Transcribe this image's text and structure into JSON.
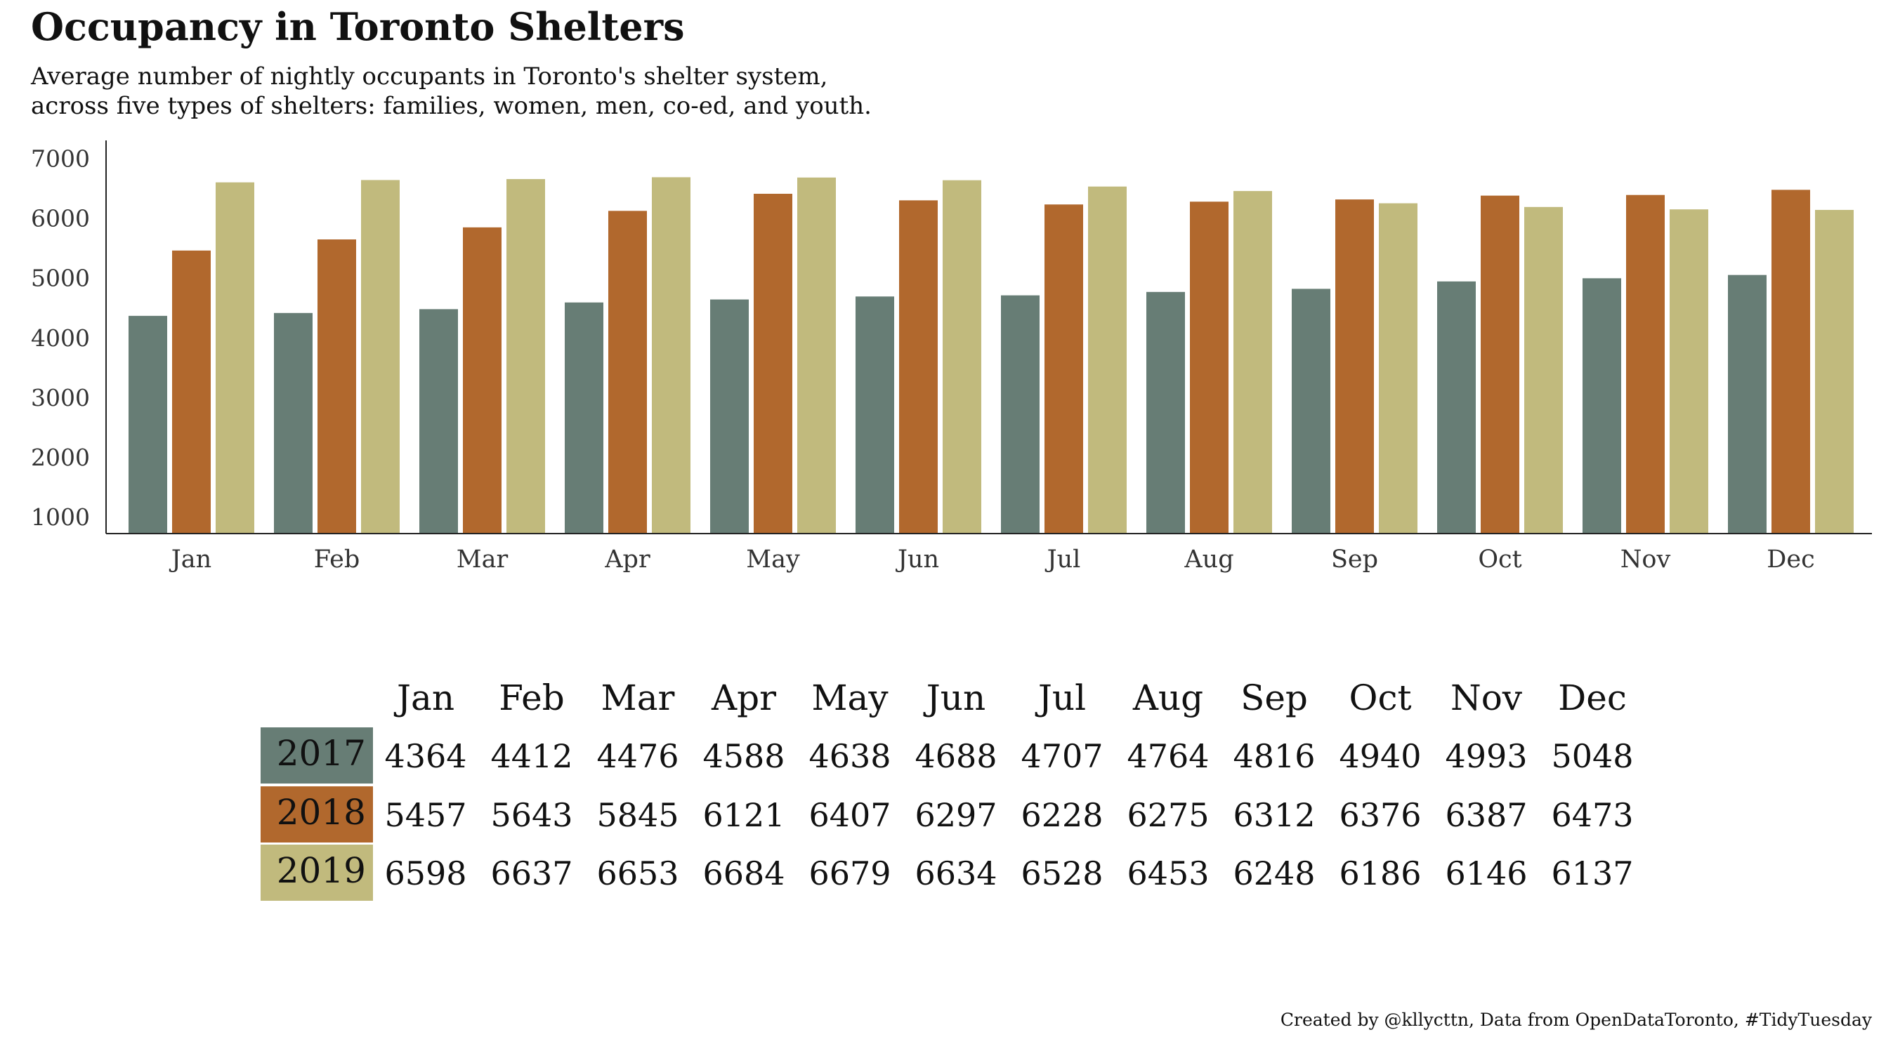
{
  "title": "Occupancy in Toronto Shelters",
  "subtitle": [
    "Average number of nightly occupants in Toronto's shelter system,",
    "across five types of shelters: families, women, men, co-ed, and youth."
  ],
  "caption": "Created by @kllycttn, Data from OpenDataToronto, #TidyTuesday",
  "colors": {
    "2017": "#677D75",
    "2018": "#B1682D",
    "2019": "#C1BA7D"
  },
  "chart_data": {
    "type": "bar",
    "categories": [
      "Jan",
      "Feb",
      "Mar",
      "Apr",
      "May",
      "Jun",
      "Jul",
      "Aug",
      "Sep",
      "Oct",
      "Nov",
      "Dec"
    ],
    "series": [
      {
        "name": "2017",
        "values": [
          4364,
          4412,
          4476,
          4588,
          4638,
          4688,
          4707,
          4764,
          4816,
          4940,
          4993,
          5048
        ]
      },
      {
        "name": "2018",
        "values": [
          5457,
          5643,
          5845,
          6121,
          6407,
          6297,
          6228,
          6275,
          6312,
          6376,
          6387,
          6473
        ]
      },
      {
        "name": "2019",
        "values": [
          6598,
          6637,
          6653,
          6684,
          6679,
          6634,
          6528,
          6453,
          6248,
          6186,
          6146,
          6137
        ]
      }
    ],
    "yticks": [
      "1000",
      "2000",
      "3000",
      "4000",
      "5000",
      "6000",
      "7000"
    ],
    "ylim": [
      720,
      7300
    ],
    "grid": false,
    "legend": "table below chart"
  }
}
